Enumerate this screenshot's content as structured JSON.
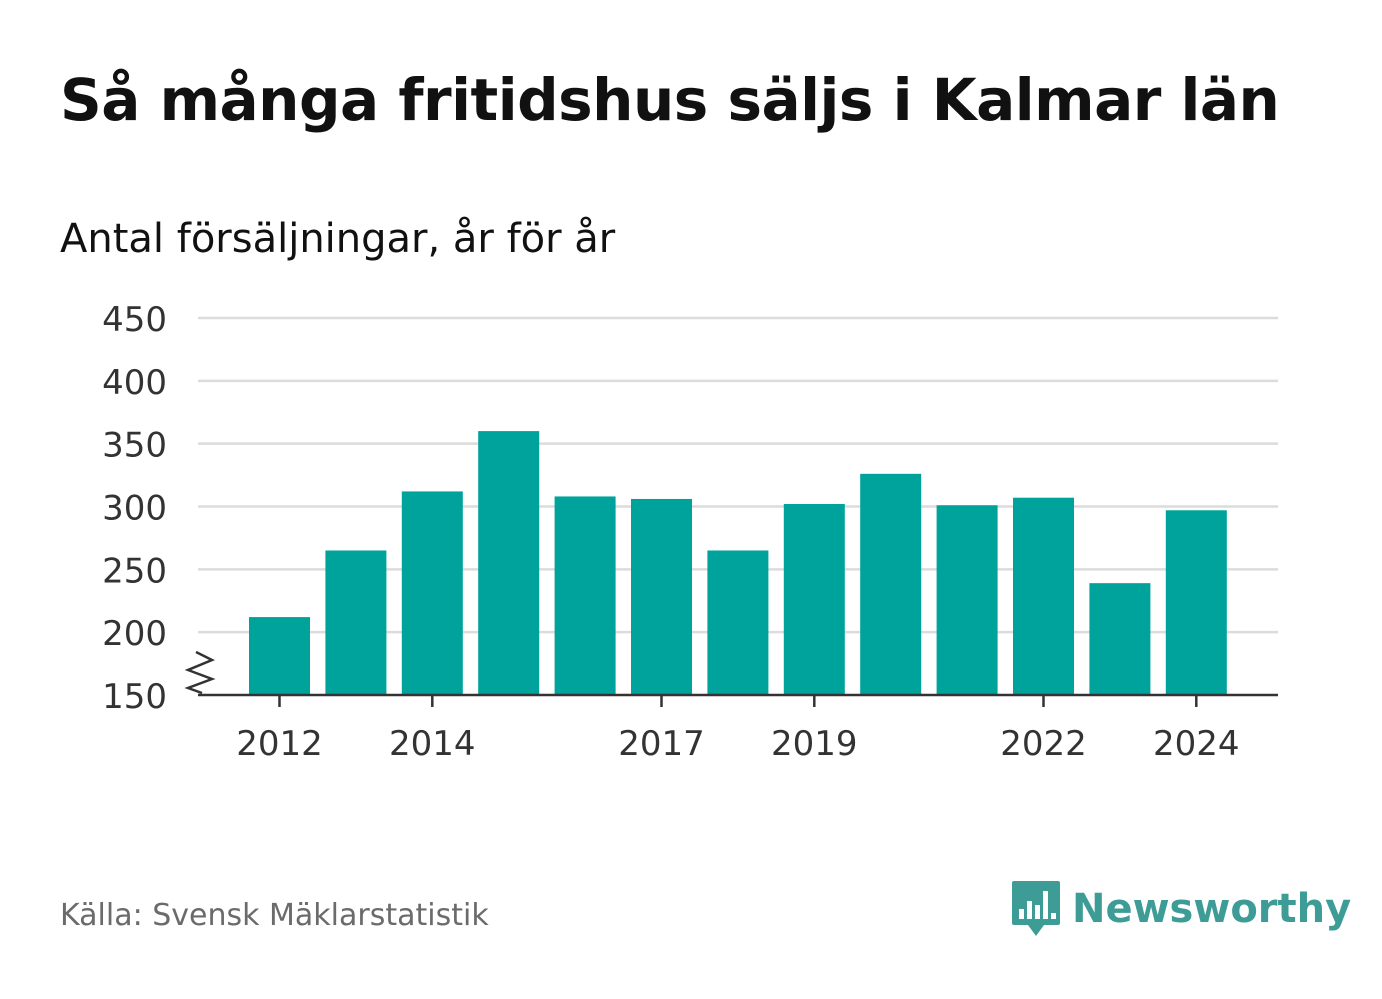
{
  "header": {
    "title": "Så många fritidshus säljs i Kalmar län",
    "subtitle": "Antal försäljningar, år för år"
  },
  "footer": {
    "source": "Källa: Svensk Mäklarstatistik",
    "brand_name": "Newsworthy",
    "brand_icon": "bar-chart-speech-bubble-icon"
  },
  "colors": {
    "bar": "#00a39b",
    "grid": "#dcdcdc",
    "axis": "#333333",
    "text": "#111111",
    "muted": "#6b6b6b",
    "brand": "#3d9c96"
  },
  "chart_data": {
    "type": "bar",
    "categories": [
      "2012",
      "2013",
      "2014",
      "2015",
      "2016",
      "2017",
      "2018",
      "2019",
      "2020",
      "2021",
      "2022",
      "2023",
      "2024"
    ],
    "values": [
      212,
      265,
      312,
      360,
      308,
      306,
      265,
      302,
      326,
      301,
      307,
      239,
      297
    ],
    "x_tick_labels": [
      "2012",
      "2014",
      "2017",
      "2019",
      "2022",
      "2024"
    ],
    "y_ticks": [
      150,
      200,
      250,
      300,
      350,
      400,
      450
    ],
    "ylim": [
      150,
      450
    ],
    "axis_break": true,
    "grid": true,
    "legend": "none"
  }
}
